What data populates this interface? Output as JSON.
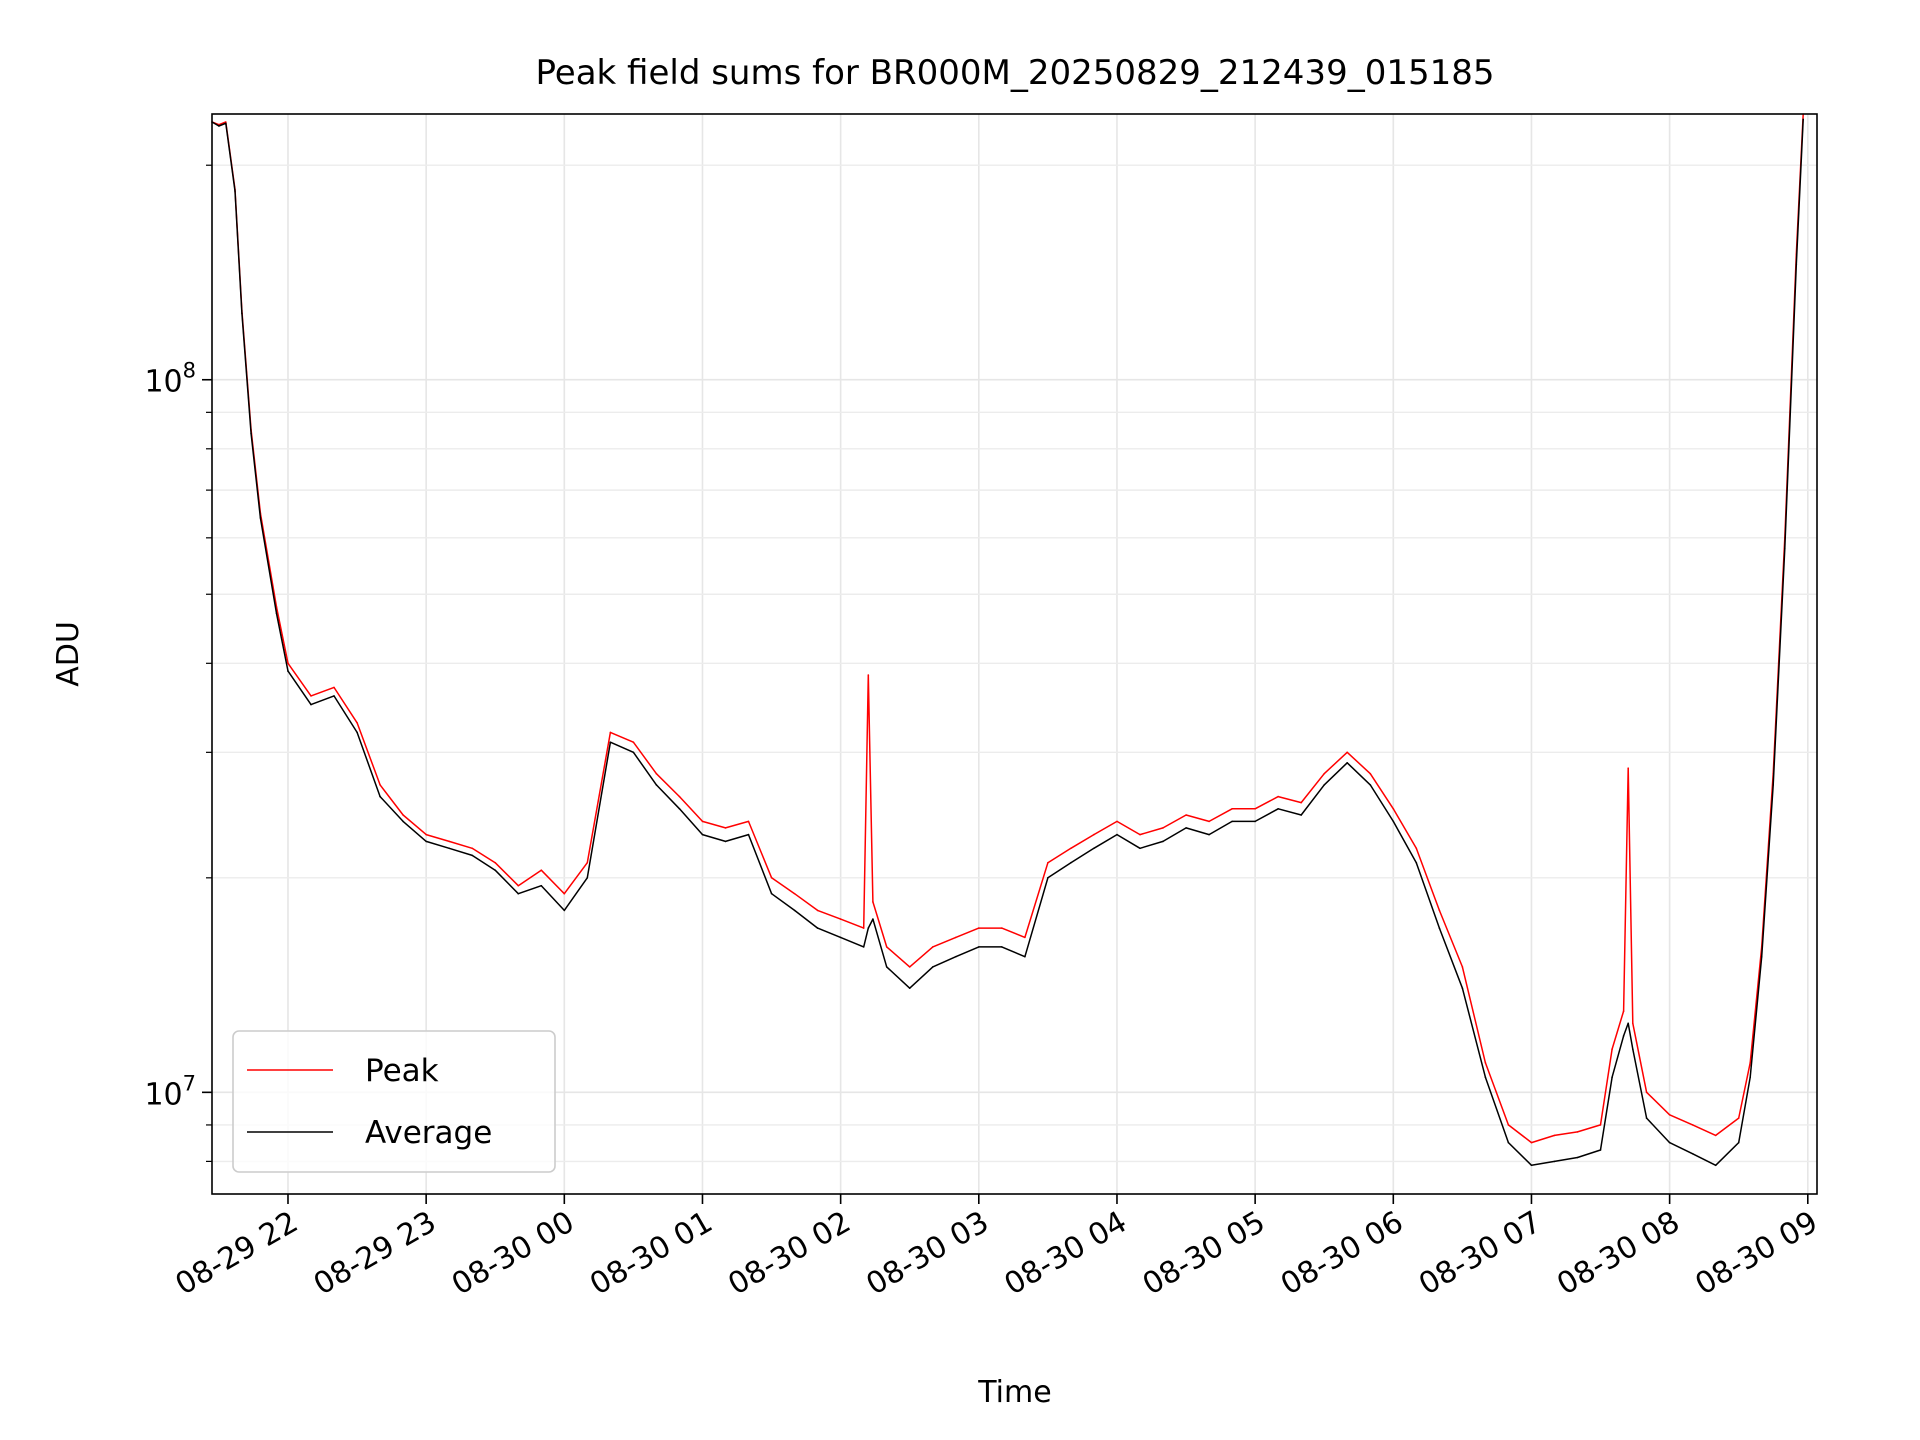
{
  "chart_data": {
    "type": "line",
    "title": "Peak field sums for BR000M_20250829_212439_015185",
    "xlabel": "Time",
    "ylabel": "ADU",
    "x_axis": "datetime",
    "x_range": [
      "2025-08-29 21:27",
      "2025-08-30 09:04"
    ],
    "x_ticks": [
      {
        "t": "2025-08-29 22:00",
        "label": "08-29 22"
      },
      {
        "t": "2025-08-29 23:00",
        "label": "08-29 23"
      },
      {
        "t": "2025-08-30 00:00",
        "label": "08-30 00"
      },
      {
        "t": "2025-08-30 01:00",
        "label": "08-30 01"
      },
      {
        "t": "2025-08-30 02:00",
        "label": "08-30 02"
      },
      {
        "t": "2025-08-30 03:00",
        "label": "08-30 03"
      },
      {
        "t": "2025-08-30 04:00",
        "label": "08-30 04"
      },
      {
        "t": "2025-08-30 05:00",
        "label": "08-30 05"
      },
      {
        "t": "2025-08-30 06:00",
        "label": "08-30 06"
      },
      {
        "t": "2025-08-30 07:00",
        "label": "08-30 07"
      },
      {
        "t": "2025-08-30 08:00",
        "label": "08-30 08"
      },
      {
        "t": "2025-08-30 09:00",
        "label": "08-30 09"
      }
    ],
    "y_scale": "log",
    "ylim": [
      7200000,
      236000000
    ],
    "y_ticks": [
      {
        "value": 10000000,
        "base": "10",
        "exp": "7"
      },
      {
        "value": 100000000,
        "base": "10",
        "exp": "8"
      }
    ],
    "grid": true,
    "legend": {
      "position": "lower-left"
    },
    "series": [
      {
        "name": "Peak",
        "color": "#ff0000",
        "points": [
          [
            "2025-08-29 21:27",
            230000000
          ],
          [
            "2025-08-29 21:30",
            228000000
          ],
          [
            "2025-08-29 21:33",
            230000000
          ],
          [
            "2025-08-29 21:37",
            185000000
          ],
          [
            "2025-08-29 21:40",
            125000000
          ],
          [
            "2025-08-29 21:44",
            85000000
          ],
          [
            "2025-08-29 21:48",
            65000000
          ],
          [
            "2025-08-29 21:55",
            48000000
          ],
          [
            "2025-08-29 22:00",
            40000000
          ],
          [
            "2025-08-29 22:10",
            36000000
          ],
          [
            "2025-08-29 22:20",
            37000000
          ],
          [
            "2025-08-29 22:30",
            33000000
          ],
          [
            "2025-08-29 22:40",
            27000000
          ],
          [
            "2025-08-29 22:50",
            24500000
          ],
          [
            "2025-08-29 23:00",
            23000000
          ],
          [
            "2025-08-29 23:10",
            22500000
          ],
          [
            "2025-08-29 23:20",
            22000000
          ],
          [
            "2025-08-29 23:30",
            21000000
          ],
          [
            "2025-08-29 23:40",
            19500000
          ],
          [
            "2025-08-29 23:50",
            20500000
          ],
          [
            "2025-08-30 00:00",
            19000000
          ],
          [
            "2025-08-30 00:10",
            21000000
          ],
          [
            "2025-08-30 00:20",
            32000000
          ],
          [
            "2025-08-30 00:30",
            31000000
          ],
          [
            "2025-08-30 00:40",
            28000000
          ],
          [
            "2025-08-30 00:50",
            26000000
          ],
          [
            "2025-08-30 01:00",
            24000000
          ],
          [
            "2025-08-30 01:10",
            23500000
          ],
          [
            "2025-08-30 01:20",
            24000000
          ],
          [
            "2025-08-30 01:30",
            20000000
          ],
          [
            "2025-08-30 01:40",
            19000000
          ],
          [
            "2025-08-30 01:50",
            18000000
          ],
          [
            "2025-08-30 02:00",
            17500000
          ],
          [
            "2025-08-30 02:10",
            17000000
          ],
          [
            "2025-08-30 02:12",
            38500000
          ],
          [
            "2025-08-30 02:14",
            18500000
          ],
          [
            "2025-08-30 02:20",
            16000000
          ],
          [
            "2025-08-30 02:30",
            15000000
          ],
          [
            "2025-08-30 02:40",
            16000000
          ],
          [
            "2025-08-30 02:50",
            16500000
          ],
          [
            "2025-08-30 03:00",
            17000000
          ],
          [
            "2025-08-30 03:10",
            17000000
          ],
          [
            "2025-08-30 03:20",
            16500000
          ],
          [
            "2025-08-30 03:30",
            21000000
          ],
          [
            "2025-08-30 03:40",
            22000000
          ],
          [
            "2025-08-30 03:50",
            23000000
          ],
          [
            "2025-08-30 04:00",
            24000000
          ],
          [
            "2025-08-30 04:10",
            23000000
          ],
          [
            "2025-08-30 04:20",
            23500000
          ],
          [
            "2025-08-30 04:30",
            24500000
          ],
          [
            "2025-08-30 04:40",
            24000000
          ],
          [
            "2025-08-30 04:50",
            25000000
          ],
          [
            "2025-08-30 05:00",
            25000000
          ],
          [
            "2025-08-30 05:10",
            26000000
          ],
          [
            "2025-08-30 05:20",
            25500000
          ],
          [
            "2025-08-30 05:30",
            28000000
          ],
          [
            "2025-08-30 05:40",
            30000000
          ],
          [
            "2025-08-30 05:50",
            28000000
          ],
          [
            "2025-08-30 06:00",
            25000000
          ],
          [
            "2025-08-30 06:10",
            22000000
          ],
          [
            "2025-08-30 06:20",
            18000000
          ],
          [
            "2025-08-30 06:30",
            15000000
          ],
          [
            "2025-08-30 06:40",
            11000000
          ],
          [
            "2025-08-30 06:50",
            9000000
          ],
          [
            "2025-08-30 07:00",
            8500000
          ],
          [
            "2025-08-30 07:10",
            8700000
          ],
          [
            "2025-08-30 07:20",
            8800000
          ],
          [
            "2025-08-30 07:30",
            9000000
          ],
          [
            "2025-08-30 07:35",
            11500000
          ],
          [
            "2025-08-30 07:40",
            13000000
          ],
          [
            "2025-08-30 07:42",
            28500000
          ],
          [
            "2025-08-30 07:44",
            12500000
          ],
          [
            "2025-08-30 07:50",
            10000000
          ],
          [
            "2025-08-30 08:00",
            9300000
          ],
          [
            "2025-08-30 08:10",
            9000000
          ],
          [
            "2025-08-30 08:20",
            8700000
          ],
          [
            "2025-08-30 08:30",
            9200000
          ],
          [
            "2025-08-30 08:35",
            11000000
          ],
          [
            "2025-08-30 08:40",
            16000000
          ],
          [
            "2025-08-30 08:45",
            28000000
          ],
          [
            "2025-08-30 08:50",
            60000000
          ],
          [
            "2025-08-30 08:55",
            150000000
          ],
          [
            "2025-08-30 08:58",
            236000000
          ]
        ]
      },
      {
        "name": "Average",
        "color": "#000000",
        "points": [
          [
            "2025-08-29 21:27",
            230000000
          ],
          [
            "2025-08-29 21:30",
            227000000
          ],
          [
            "2025-08-29 21:33",
            229000000
          ],
          [
            "2025-08-29 21:37",
            184000000
          ],
          [
            "2025-08-29 21:40",
            124000000
          ],
          [
            "2025-08-29 21:44",
            84000000
          ],
          [
            "2025-08-29 21:48",
            64000000
          ],
          [
            "2025-08-29 21:55",
            47000000
          ],
          [
            "2025-08-29 22:00",
            39000000
          ],
          [
            "2025-08-29 22:10",
            35000000
          ],
          [
            "2025-08-29 22:20",
            36000000
          ],
          [
            "2025-08-29 22:30",
            32000000
          ],
          [
            "2025-08-29 22:40",
            26000000
          ],
          [
            "2025-08-29 22:50",
            24000000
          ],
          [
            "2025-08-29 23:00",
            22500000
          ],
          [
            "2025-08-29 23:10",
            22000000
          ],
          [
            "2025-08-29 23:20",
            21500000
          ],
          [
            "2025-08-29 23:30",
            20500000
          ],
          [
            "2025-08-29 23:40",
            19000000
          ],
          [
            "2025-08-29 23:50",
            19500000
          ],
          [
            "2025-08-30 00:00",
            18000000
          ],
          [
            "2025-08-30 00:10",
            20000000
          ],
          [
            "2025-08-30 00:20",
            31000000
          ],
          [
            "2025-08-30 00:30",
            30000000
          ],
          [
            "2025-08-30 00:40",
            27000000
          ],
          [
            "2025-08-30 00:50",
            25000000
          ],
          [
            "2025-08-30 01:00",
            23000000
          ],
          [
            "2025-08-30 01:10",
            22500000
          ],
          [
            "2025-08-30 01:20",
            23000000
          ],
          [
            "2025-08-30 01:30",
            19000000
          ],
          [
            "2025-08-30 01:40",
            18000000
          ],
          [
            "2025-08-30 01:50",
            17000000
          ],
          [
            "2025-08-30 02:00",
            16500000
          ],
          [
            "2025-08-30 02:10",
            16000000
          ],
          [
            "2025-08-30 02:12",
            17000000
          ],
          [
            "2025-08-30 02:14",
            17500000
          ],
          [
            "2025-08-30 02:20",
            15000000
          ],
          [
            "2025-08-30 02:30",
            14000000
          ],
          [
            "2025-08-30 02:40",
            15000000
          ],
          [
            "2025-08-30 02:50",
            15500000
          ],
          [
            "2025-08-30 03:00",
            16000000
          ],
          [
            "2025-08-30 03:10",
            16000000
          ],
          [
            "2025-08-30 03:20",
            15500000
          ],
          [
            "2025-08-30 03:30",
            20000000
          ],
          [
            "2025-08-30 03:40",
            21000000
          ],
          [
            "2025-08-30 03:50",
            22000000
          ],
          [
            "2025-08-30 04:00",
            23000000
          ],
          [
            "2025-08-30 04:10",
            22000000
          ],
          [
            "2025-08-30 04:20",
            22500000
          ],
          [
            "2025-08-30 04:30",
            23500000
          ],
          [
            "2025-08-30 04:40",
            23000000
          ],
          [
            "2025-08-30 04:50",
            24000000
          ],
          [
            "2025-08-30 05:00",
            24000000
          ],
          [
            "2025-08-30 05:10",
            25000000
          ],
          [
            "2025-08-30 05:20",
            24500000
          ],
          [
            "2025-08-30 05:30",
            27000000
          ],
          [
            "2025-08-30 05:40",
            29000000
          ],
          [
            "2025-08-30 05:50",
            27000000
          ],
          [
            "2025-08-30 06:00",
            24000000
          ],
          [
            "2025-08-30 06:10",
            21000000
          ],
          [
            "2025-08-30 06:20",
            17000000
          ],
          [
            "2025-08-30 06:30",
            14000000
          ],
          [
            "2025-08-30 06:40",
            10500000
          ],
          [
            "2025-08-30 06:50",
            8500000
          ],
          [
            "2025-08-30 07:00",
            7900000
          ],
          [
            "2025-08-30 07:10",
            8000000
          ],
          [
            "2025-08-30 07:20",
            8100000
          ],
          [
            "2025-08-30 07:30",
            8300000
          ],
          [
            "2025-08-30 07:35",
            10500000
          ],
          [
            "2025-08-30 07:40",
            12000000
          ],
          [
            "2025-08-30 07:42",
            12500000
          ],
          [
            "2025-08-30 07:44",
            11500000
          ],
          [
            "2025-08-30 07:50",
            9200000
          ],
          [
            "2025-08-30 08:00",
            8500000
          ],
          [
            "2025-08-30 08:10",
            8200000
          ],
          [
            "2025-08-30 08:20",
            7900000
          ],
          [
            "2025-08-30 08:30",
            8500000
          ],
          [
            "2025-08-30 08:35",
            10500000
          ],
          [
            "2025-08-30 08:40",
            15500000
          ],
          [
            "2025-08-30 08:45",
            27000000
          ],
          [
            "2025-08-30 08:50",
            58000000
          ],
          [
            "2025-08-30 08:55",
            145000000
          ],
          [
            "2025-08-30 08:58",
            232000000
          ]
        ]
      }
    ]
  }
}
